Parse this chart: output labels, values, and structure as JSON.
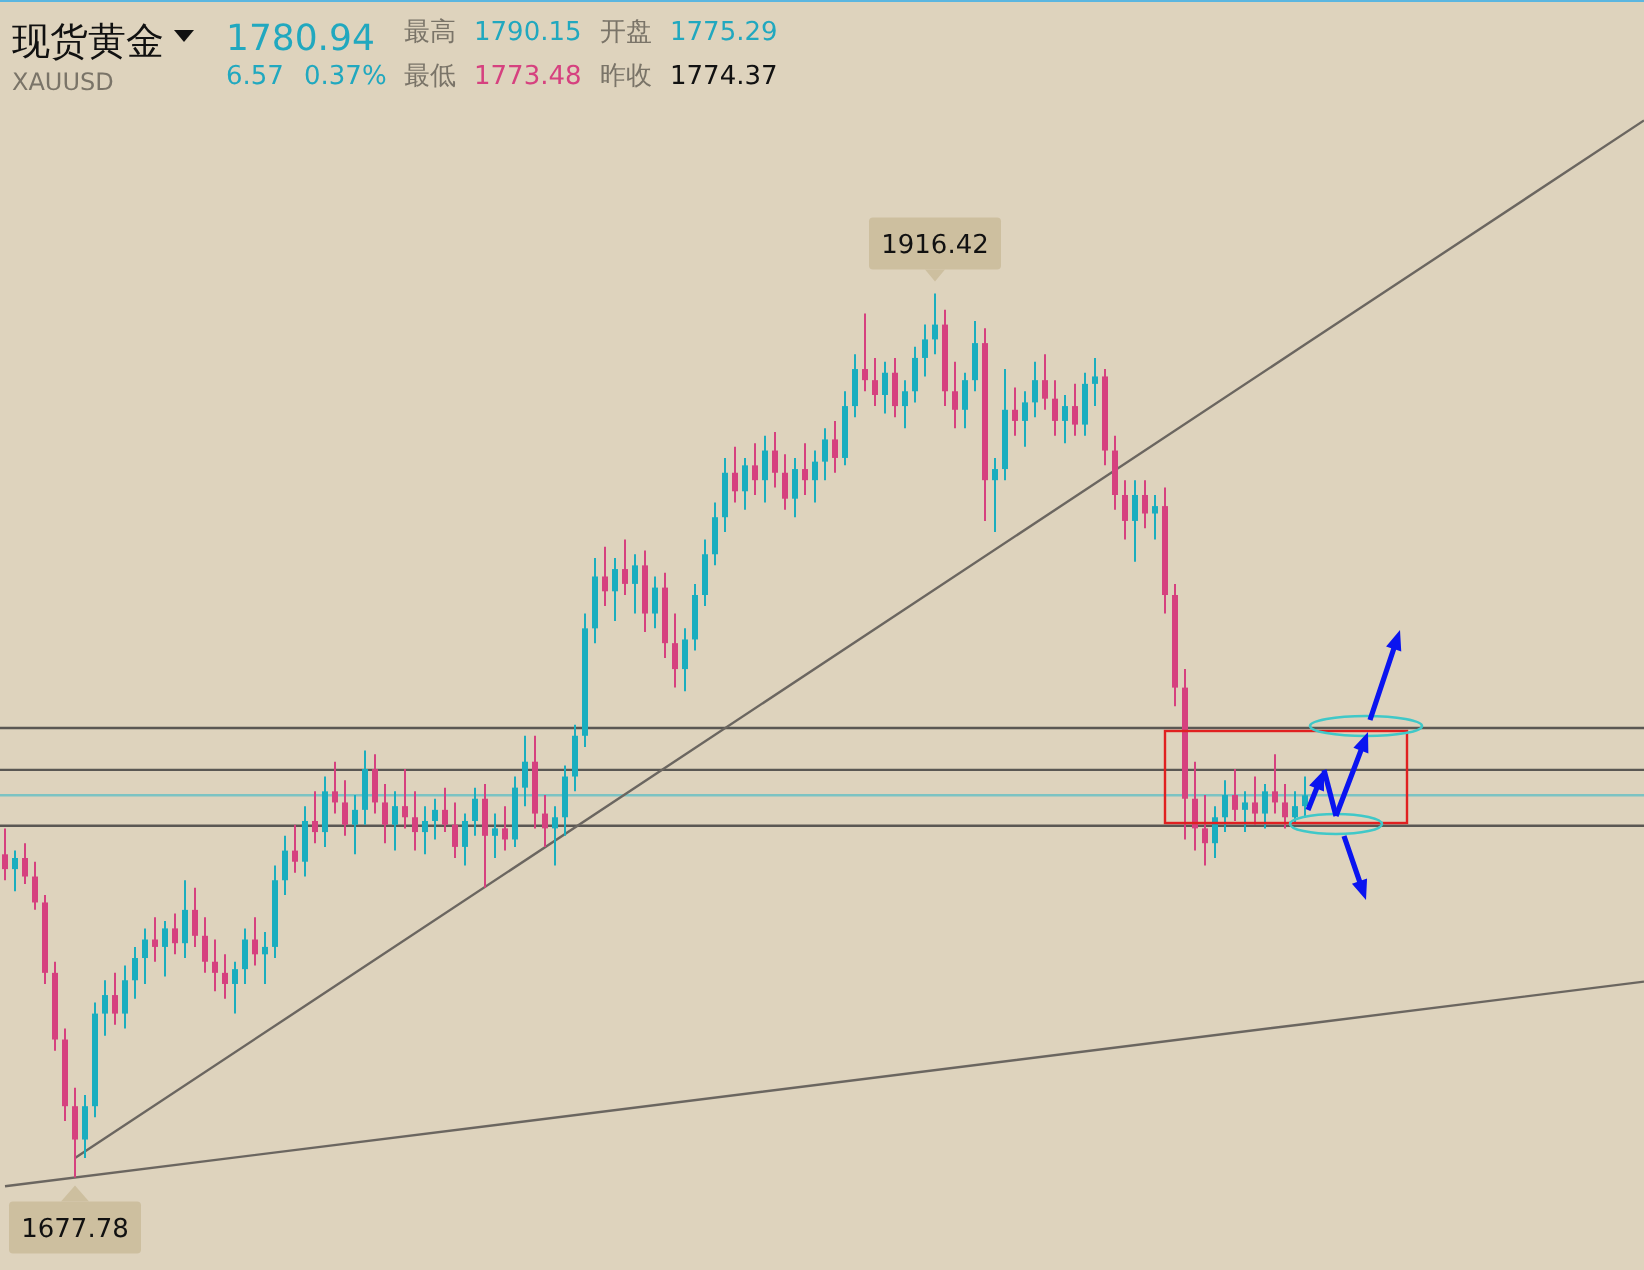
{
  "chart_data": {
    "type": "candlestick",
    "title": "现货黄金",
    "subtitle": "XAUUSD",
    "annotations": [
      "1780.94",
      "6.57",
      "0.37%",
      "最高",
      "1790.15",
      "开盘",
      "1775.29",
      "最低",
      "1773.48",
      "昨收",
      "1774.37",
      {
        "text": "1916.42",
        "y": 1916.42
      },
      {
        "text": "1677.78",
        "y": 1677.78
      }
    ],
    "categories": [
      null,
      null,
      null,
      null,
      null,
      null,
      null,
      null,
      null,
      null,
      null,
      null,
      null,
      null,
      null,
      null,
      null,
      null,
      null,
      null,
      null,
      null,
      null,
      null,
      null,
      null,
      null,
      null,
      null,
      null,
      null,
      null,
      null,
      null,
      null,
      null,
      null,
      null,
      null,
      null,
      null,
      null,
      null,
      null,
      null,
      null,
      null,
      null,
      null,
      null,
      null,
      null,
      null,
      null,
      null,
      null,
      null,
      null,
      null,
      null,
      null,
      null,
      null,
      null,
      null,
      null,
      null,
      null,
      null,
      null,
      null,
      null,
      null,
      null,
      null,
      null,
      null,
      null,
      null,
      null,
      null,
      null,
      null,
      null,
      null,
      null,
      null,
      null,
      null,
      null,
      null,
      null,
      null,
      null,
      null,
      null,
      null,
      null,
      null,
      null,
      null,
      null,
      null,
      null,
      null,
      null,
      null,
      null,
      null,
      null,
      null,
      null,
      null,
      null,
      null,
      null,
      null,
      null,
      null,
      null,
      null,
      null,
      null,
      null,
      null,
      null,
      null,
      null,
      null,
      null,
      null
    ],
    "ohlc": [
      [
        1765,
        1772,
        1758,
        1761
      ],
      [
        1761,
        1766,
        1755,
        1764
      ],
      [
        1764,
        1768,
        1757,
        1759
      ],
      [
        1759,
        1763,
        1750,
        1752
      ],
      [
        1752,
        1754,
        1730,
        1733
      ],
      [
        1733,
        1736,
        1712,
        1715
      ],
      [
        1715,
        1718,
        1693,
        1697
      ],
      [
        1697,
        1702,
        1677.78,
        1688
      ],
      [
        1688,
        1700,
        1683,
        1697
      ],
      [
        1697,
        1725,
        1694,
        1722
      ],
      [
        1722,
        1731,
        1716,
        1727
      ],
      [
        1727,
        1733,
        1719,
        1722
      ],
      [
        1722,
        1735,
        1718,
        1731
      ],
      [
        1731,
        1740,
        1726,
        1737
      ],
      [
        1737,
        1745,
        1730,
        1742
      ],
      [
        1742,
        1748,
        1736,
        1740
      ],
      [
        1740,
        1747,
        1732,
        1745
      ],
      [
        1745,
        1749,
        1738,
        1741
      ],
      [
        1741,
        1758,
        1737,
        1750
      ],
      [
        1750,
        1756,
        1740,
        1743
      ],
      [
        1743,
        1748,
        1733,
        1736
      ],
      [
        1736,
        1742,
        1728,
        1733
      ],
      [
        1733,
        1738,
        1726,
        1730
      ],
      [
        1730,
        1736,
        1722,
        1734
      ],
      [
        1734,
        1745,
        1730,
        1742
      ],
      [
        1742,
        1748,
        1735,
        1738
      ],
      [
        1738,
        1744,
        1730,
        1740
      ],
      [
        1740,
        1762,
        1737,
        1758
      ],
      [
        1758,
        1770,
        1754,
        1766
      ],
      [
        1766,
        1773,
        1760,
        1763
      ],
      [
        1763,
        1778,
        1759,
        1774
      ],
      [
        1774,
        1782,
        1768,
        1771
      ],
      [
        1771,
        1786,
        1767,
        1782
      ],
      [
        1782,
        1790,
        1776,
        1779
      ],
      [
        1779,
        1785,
        1770,
        1773
      ],
      [
        1773,
        1781,
        1765,
        1777
      ],
      [
        1777,
        1793,
        1773,
        1788
      ],
      [
        1788,
        1792,
        1776,
        1779
      ],
      [
        1779,
        1784,
        1768,
        1773
      ],
      [
        1773,
        1782,
        1766,
        1778
      ],
      [
        1778,
        1788,
        1772,
        1775
      ],
      [
        1775,
        1782,
        1766,
        1771
      ],
      [
        1771,
        1778,
        1765,
        1774
      ],
      [
        1774,
        1780,
        1769,
        1777
      ],
      [
        1777,
        1783,
        1771,
        1773
      ],
      [
        1773,
        1779,
        1764,
        1767
      ],
      [
        1767,
        1776,
        1762,
        1774
      ],
      [
        1774,
        1783,
        1770,
        1780
      ],
      [
        1780,
        1784,
        1756,
        1770
      ],
      [
        1770,
        1776,
        1764,
        1772
      ],
      [
        1772,
        1778,
        1766,
        1769
      ],
      [
        1769,
        1786,
        1767,
        1783
      ],
      [
        1783,
        1797,
        1778,
        1790
      ],
      [
        1790,
        1797,
        1772,
        1776
      ],
      [
        1776,
        1781,
        1767,
        1772
      ],
      [
        1772,
        1778,
        1762,
        1775
      ],
      [
        1775,
        1789,
        1770,
        1786
      ],
      [
        1786,
        1800,
        1782,
        1797
      ],
      [
        1797,
        1830,
        1794,
        1826
      ],
      [
        1826,
        1845,
        1822,
        1840
      ],
      [
        1840,
        1848,
        1832,
        1836
      ],
      [
        1836,
        1845,
        1828,
        1842
      ],
      [
        1842,
        1850,
        1835,
        1838
      ],
      [
        1838,
        1846,
        1830,
        1843
      ],
      [
        1843,
        1847,
        1825,
        1830
      ],
      [
        1830,
        1840,
        1826,
        1837
      ],
      [
        1837,
        1841,
        1818,
        1822
      ],
      [
        1822,
        1830,
        1810,
        1815
      ],
      [
        1815,
        1826,
        1809,
        1823
      ],
      [
        1823,
        1838,
        1820,
        1835
      ],
      [
        1835,
        1850,
        1832,
        1846
      ],
      [
        1846,
        1860,
        1843,
        1856
      ],
      [
        1856,
        1872,
        1852,
        1868
      ],
      [
        1868,
        1875,
        1860,
        1863
      ],
      [
        1863,
        1872,
        1858,
        1870
      ],
      [
        1870,
        1876,
        1862,
        1866
      ],
      [
        1866,
        1878,
        1860,
        1874
      ],
      [
        1874,
        1879,
        1864,
        1868
      ],
      [
        1868,
        1873,
        1858,
        1861
      ],
      [
        1861,
        1872,
        1856,
        1869
      ],
      [
        1869,
        1876,
        1862,
        1866
      ],
      [
        1866,
        1874,
        1860,
        1871
      ],
      [
        1871,
        1880,
        1866,
        1877
      ],
      [
        1877,
        1882,
        1868,
        1872
      ],
      [
        1872,
        1890,
        1870,
        1886
      ],
      [
        1886,
        1900,
        1883,
        1896
      ],
      [
        1896,
        1911,
        1890,
        1893
      ],
      [
        1893,
        1899,
        1886,
        1889
      ],
      [
        1889,
        1898,
        1884,
        1895
      ],
      [
        1895,
        1899,
        1883,
        1886
      ],
      [
        1886,
        1893,
        1880,
        1890
      ],
      [
        1890,
        1902,
        1887,
        1899
      ],
      [
        1899,
        1908,
        1894,
        1904
      ],
      [
        1904,
        1916.42,
        1900,
        1908
      ],
      [
        1908,
        1912,
        1886,
        1890
      ],
      [
        1890,
        1898,
        1880,
        1885
      ],
      [
        1885,
        1895,
        1880,
        1893
      ],
      [
        1893,
        1909,
        1890,
        1903
      ],
      [
        1903,
        1907,
        1855,
        1866
      ],
      [
        1866,
        1872,
        1852,
        1869
      ],
      [
        1869,
        1896,
        1866,
        1885
      ],
      [
        1885,
        1891,
        1878,
        1882
      ],
      [
        1882,
        1890,
        1875,
        1887
      ],
      [
        1887,
        1898,
        1883,
        1893
      ],
      [
        1893,
        1900,
        1885,
        1888
      ],
      [
        1888,
        1893,
        1878,
        1882
      ],
      [
        1882,
        1889,
        1876,
        1886
      ],
      [
        1886,
        1892,
        1878,
        1881
      ],
      [
        1881,
        1895,
        1878,
        1892
      ],
      [
        1892,
        1899,
        1886,
        1894
      ],
      [
        1894,
        1896,
        1870,
        1874
      ],
      [
        1874,
        1878,
        1858,
        1862
      ],
      [
        1862,
        1866,
        1850,
        1855
      ],
      [
        1855,
        1866,
        1844,
        1862
      ],
      [
        1862,
        1866,
        1853,
        1857
      ],
      [
        1857,
        1862,
        1850,
        1859
      ],
      [
        1859,
        1864,
        1830,
        1835
      ],
      [
        1835,
        1838,
        1805,
        1810
      ],
      [
        1810,
        1815,
        1769,
        1780
      ],
      [
        1780,
        1790,
        1766,
        1772
      ],
      [
        1772,
        1781,
        1762,
        1768
      ],
      [
        1768,
        1778,
        1764,
        1775
      ],
      [
        1775,
        1785,
        1771,
        1781
      ],
      [
        1781,
        1788,
        1774,
        1777
      ],
      [
        1777,
        1782,
        1771,
        1779
      ],
      [
        1779,
        1786,
        1773,
        1776
      ],
      [
        1776,
        1784,
        1772,
        1782
      ],
      [
        1782,
        1792,
        1776,
        1779
      ],
      [
        1779,
        1784,
        1772,
        1775
      ],
      [
        1775,
        1782,
        1773.48,
        1778
      ],
      [
        1778,
        1786,
        1775,
        1780.94
      ]
    ],
    "series": [
      {
        "type": "line",
        "color": "#6b6660",
        "values": [
          null,
          null,
          null,
          null,
          null,
          null,
          null,
          1683,
          null,
          null,
          null,
          null,
          null,
          null,
          null,
          null,
          null,
          null,
          null,
          null,
          null,
          null,
          null,
          null,
          null,
          null,
          null,
          null,
          null,
          null,
          null,
          null,
          null,
          null,
          null,
          null,
          null,
          null,
          null,
          null,
          null,
          null,
          null,
          null,
          null,
          null,
          null,
          null,
          null,
          null,
          null,
          null,
          null,
          null,
          null,
          null,
          null,
          null,
          null,
          null,
          null,
          null,
          null,
          null,
          null,
          null,
          null,
          null,
          null,
          null,
          null,
          null,
          null,
          null,
          null,
          null,
          null,
          null,
          null,
          null,
          null,
          null,
          null,
          null,
          null,
          null,
          null,
          null,
          null,
          null,
          null,
          null,
          null,
          null,
          null,
          null,
          null,
          null,
          null,
          null,
          null,
          null,
          null,
          null,
          null,
          null,
          null,
          null,
          null,
          null,
          null,
          null,
          null,
          null,
          null,
          null,
          null,
          null,
          null,
          null,
          null,
          null,
          null,
          null,
          null,
          null,
          null,
          null,
          null,
          null,
          1902.6
        ]
      },
      {
        "type": "line",
        "color": "#6b6660",
        "values": [
          1675.4,
          null,
          null,
          null,
          null,
          null,
          null,
          null,
          null,
          null,
          null,
          null,
          null,
          null,
          null,
          null,
          null,
          null,
          null,
          null,
          null,
          null,
          null,
          null,
          null,
          null,
          null,
          null,
          null,
          null,
          null,
          null,
          null,
          null,
          null,
          null,
          null,
          null,
          null,
          null,
          null,
          null,
          null,
          null,
          null,
          null,
          null,
          null,
          null,
          null,
          null,
          null,
          null,
          null,
          null,
          null,
          null,
          null,
          null,
          null,
          null,
          null,
          null,
          null,
          null,
          null,
          null,
          null,
          null,
          null,
          null,
          null,
          null,
          null,
          null,
          null,
          null,
          null,
          null,
          null,
          null,
          null,
          null,
          null,
          null,
          null,
          null,
          null,
          null,
          null,
          null,
          null,
          null,
          null,
          null,
          null,
          null,
          null,
          null,
          null,
          null,
          null,
          null,
          null,
          null,
          null,
          null,
          null,
          null,
          null,
          null,
          null,
          null,
          null,
          null,
          null,
          null,
          null,
          null,
          null,
          null,
          null,
          null,
          null,
          null,
          null,
          null,
          null,
          null,
          null,
          1719.2
        ]
      }
    ],
    "ref_lines": [
      {
        "axis": "y",
        "value": 1799.1,
        "color": "#5a5753"
      },
      {
        "axis": "y",
        "value": 1787.8,
        "color": "#5a5753"
      },
      {
        "axis": "y",
        "value": 1780.94,
        "color": "#7cc3c3"
      },
      {
        "axis": "y",
        "value": 1772.7,
        "color": "#5a5753"
      }
    ]
  }
}
